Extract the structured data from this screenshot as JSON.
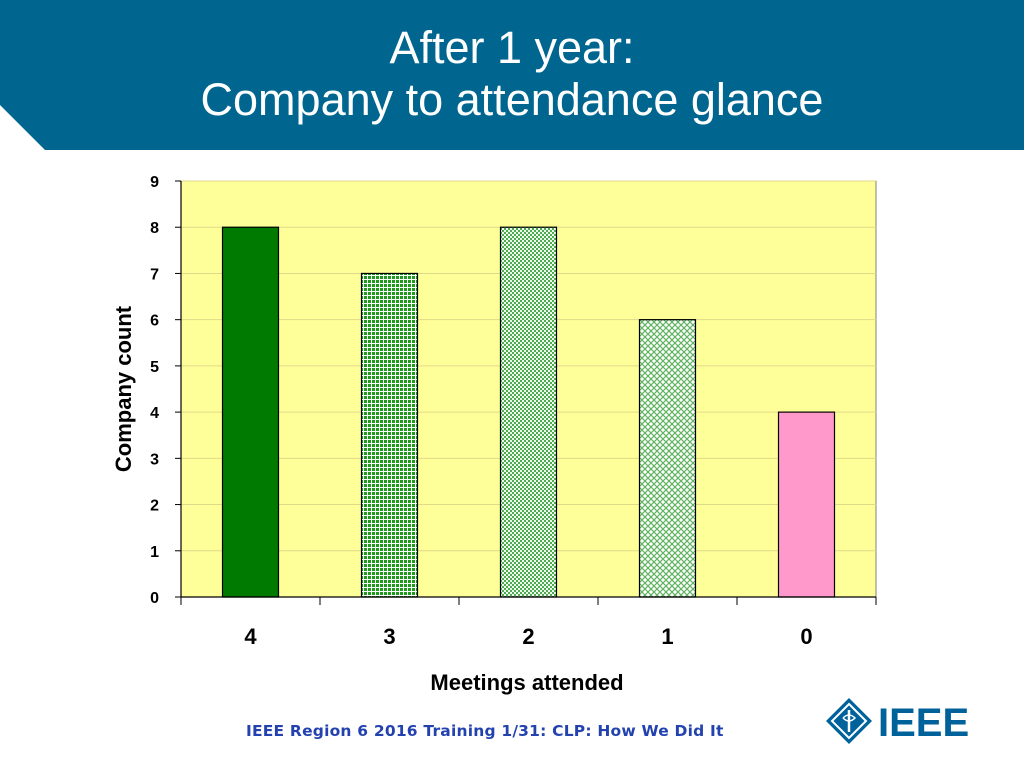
{
  "slide": {
    "title_line1": "After 1 year:",
    "title_line2": "Company to attendance glance",
    "footer": "IEEE Region 6 2016 Training 1/31: CLP: How We Did It",
    "logo_text": "IEEE",
    "banner_color": "#00668f"
  },
  "chart_data": {
    "type": "bar",
    "categories": [
      "4",
      "3",
      "2",
      "1",
      "0"
    ],
    "values": [
      8,
      7,
      8,
      6,
      4
    ],
    "xlabel": "Meetings attended",
    "ylabel": "Company count",
    "ylim": [
      0,
      9
    ],
    "yticks": [
      0,
      1,
      2,
      3,
      4,
      5,
      6,
      7,
      8,
      9
    ],
    "plot_background": "#ffff99",
    "bar_colors": [
      "#007a00",
      "#1f9a1f",
      "#5bb35b",
      "#b3ddb3",
      "#ff99cc"
    ],
    "bar_patterns": [
      "solid",
      "dense-dots",
      "medium-checker",
      "light-lattice",
      "solid"
    ],
    "grid": true,
    "legend": "none"
  }
}
